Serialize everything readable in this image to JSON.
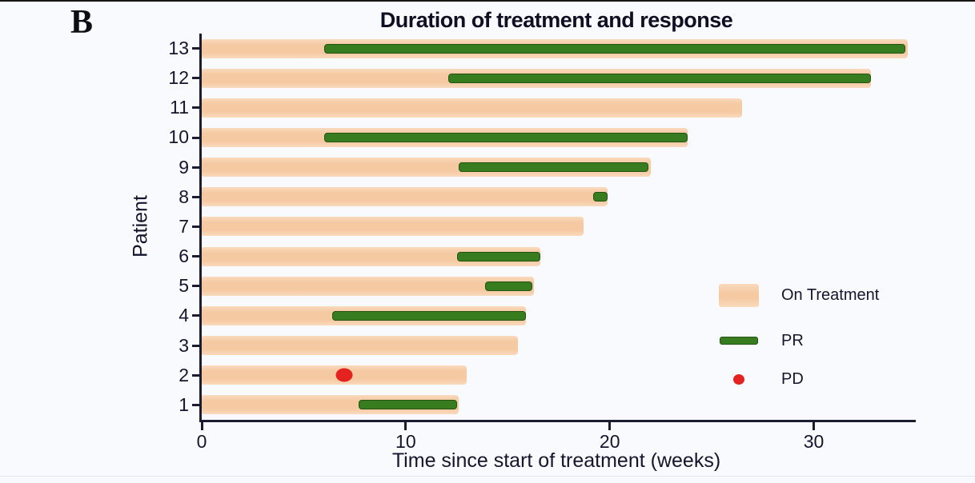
{
  "panel_label": "B",
  "chart_data": {
    "type": "bar",
    "orientation": "horizontal",
    "title": "Duration of treatment and response",
    "xlabel": "Time since start of treatment (weeks)",
    "ylabel": "Patient",
    "xlim": [
      0,
      35
    ],
    "xticks": [
      "0",
      "10",
      "20",
      "30"
    ],
    "xtick_values": [
      0,
      10,
      20,
      30
    ],
    "grid": false,
    "colors": {
      "on_treatment": "#f5c9a2",
      "on_treatment_edge": "#f9dabd",
      "pr": "#377d1f",
      "pr_border": "#245312",
      "pd": "#e42320",
      "axis": "#1c1c30",
      "text": "#15152e"
    },
    "legend": {
      "position": "right-middle",
      "items": [
        {
          "label": "On Treatment",
          "marker": "bar",
          "color": "#f5c9a2"
        },
        {
          "label": "PR",
          "marker": "segment",
          "color": "#377d1f"
        },
        {
          "label": "PD",
          "marker": "dot",
          "color": "#e42320"
        }
      ]
    },
    "patients": [
      {
        "id": "13",
        "on_treatment_weeks": 34.6,
        "pr_start": 6.0,
        "pr_end": 34.5,
        "pd_week": null
      },
      {
        "id": "12",
        "on_treatment_weeks": 32.8,
        "pr_start": 12.1,
        "pr_end": 32.8,
        "pd_week": null
      },
      {
        "id": "11",
        "on_treatment_weeks": 26.5,
        "pr_start": null,
        "pr_end": null,
        "pd_week": null
      },
      {
        "id": "10",
        "on_treatment_weeks": 23.8,
        "pr_start": 6.0,
        "pr_end": 23.8,
        "pd_week": null
      },
      {
        "id": "9",
        "on_treatment_weeks": 22.0,
        "pr_start": 12.6,
        "pr_end": 21.9,
        "pd_week": null
      },
      {
        "id": "8",
        "on_treatment_weeks": 19.9,
        "pr_start": 19.2,
        "pr_end": 19.9,
        "pd_week": null
      },
      {
        "id": "7",
        "on_treatment_weeks": 18.7,
        "pr_start": null,
        "pr_end": null,
        "pd_week": null
      },
      {
        "id": "6",
        "on_treatment_weeks": 16.6,
        "pr_start": 12.5,
        "pr_end": 16.6,
        "pd_week": null
      },
      {
        "id": "5",
        "on_treatment_weeks": 16.3,
        "pr_start": 13.9,
        "pr_end": 16.2,
        "pd_week": null
      },
      {
        "id": "4",
        "on_treatment_weeks": 15.9,
        "pr_start": 6.4,
        "pr_end": 15.9,
        "pd_week": null
      },
      {
        "id": "3",
        "on_treatment_weeks": 15.5,
        "pr_start": null,
        "pr_end": null,
        "pd_week": null
      },
      {
        "id": "2",
        "on_treatment_weeks": 13.0,
        "pr_start": null,
        "pr_end": null,
        "pd_week": 7.0
      },
      {
        "id": "1",
        "on_treatment_weeks": 12.6,
        "pr_start": 7.7,
        "pr_end": 12.5,
        "pd_week": null
      }
    ]
  }
}
